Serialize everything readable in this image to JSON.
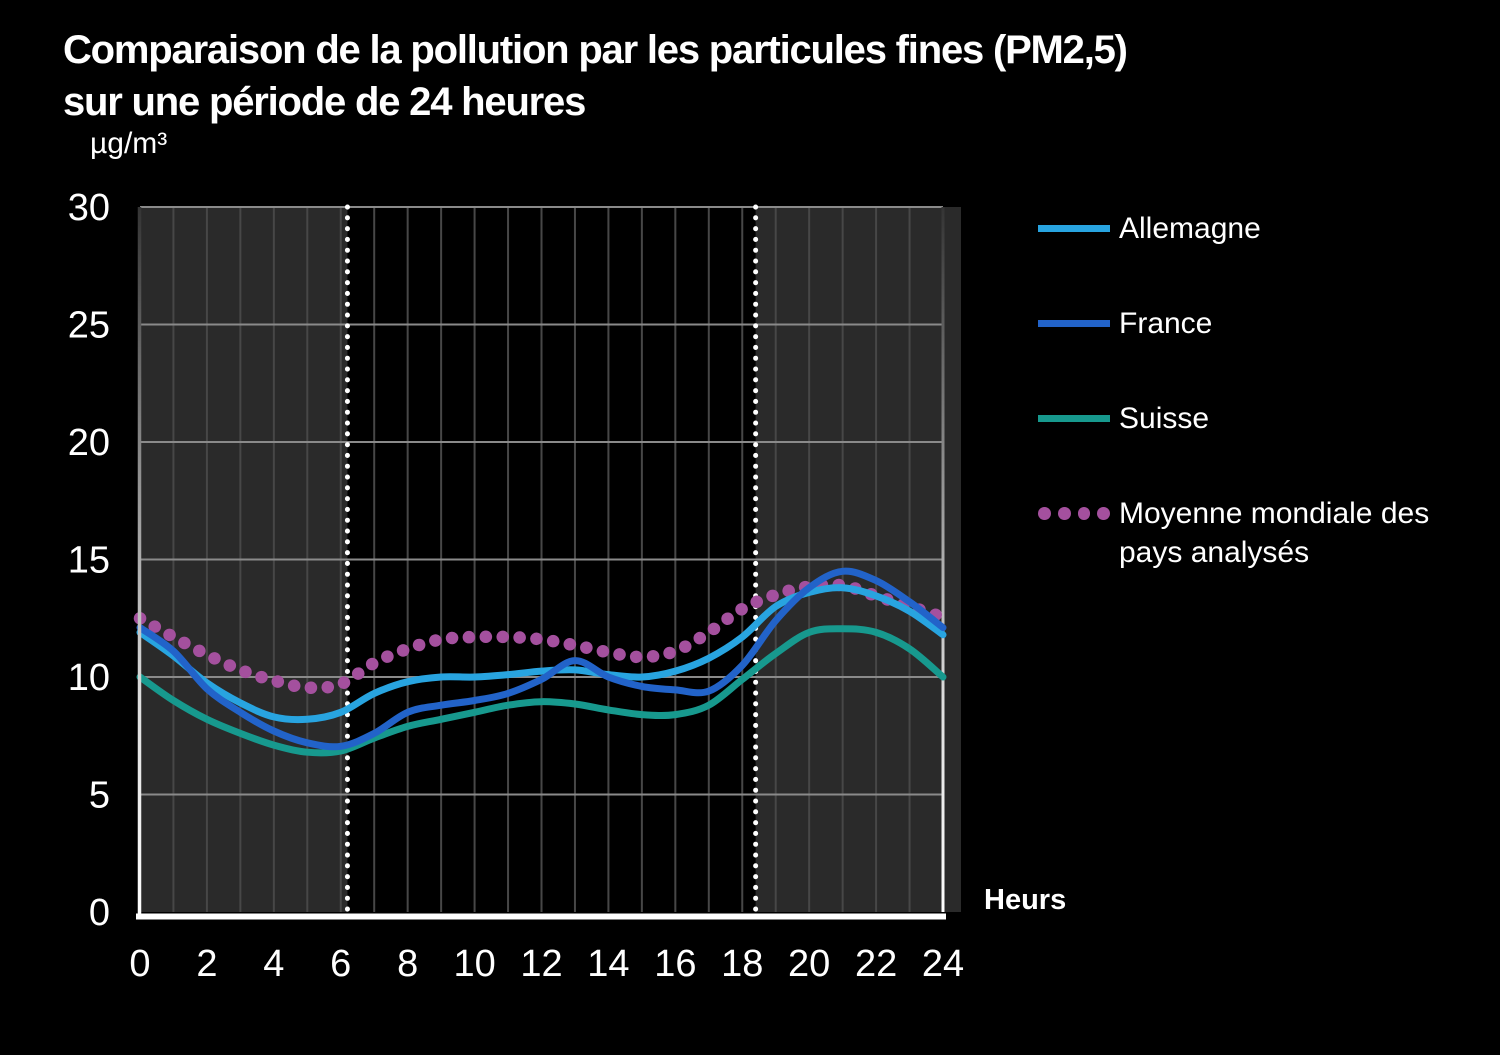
{
  "title": {
    "line1": "Comparaison de la pollution par les particules fines (PM2,5)",
    "line2": "sur une période de 24 heures"
  },
  "y_axis": {
    "unit_label": "µg/m³",
    "ticks": [
      "0",
      "5",
      "10",
      "15",
      "20",
      "25",
      "30"
    ]
  },
  "x_axis": {
    "label": "Heurs",
    "ticks": [
      "0",
      "2",
      "4",
      "6",
      "8",
      "10",
      "12",
      "14",
      "16",
      "18",
      "20",
      "22",
      "24"
    ]
  },
  "legend": {
    "items": [
      {
        "label": "Allemagne",
        "color": "#28a4e0",
        "style": "line"
      },
      {
        "label": "France",
        "color": "#2263c9",
        "style": "line"
      },
      {
        "label": "Suisse",
        "color": "#17998e",
        "style": "line"
      },
      {
        "label": "Moyenne mondiale des",
        "label2": "pays analysés",
        "color": "#a4509e",
        "style": "dots"
      }
    ]
  },
  "chart_data": {
    "type": "line",
    "title": "Comparaison de la pollution par les particules fines (PM2,5) sur une période de 24 heures",
    "xlabel": "Heurs",
    "ylabel": "µg/m³",
    "xlim": [
      0,
      24
    ],
    "ylim": [
      0,
      30
    ],
    "x_tick_step": 2,
    "y_tick_step": 5,
    "grid": "on",
    "legend_position": "right",
    "x": [
      0,
      1,
      2,
      3,
      4,
      5,
      6,
      7,
      8,
      9,
      10,
      11,
      12,
      13,
      14,
      15,
      16,
      17,
      18,
      19,
      20,
      21,
      22,
      23,
      24
    ],
    "series": [
      {
        "name": "Allemagne",
        "color": "#28a4e0",
        "line_style": "solid",
        "values": [
          11.9,
          10.9,
          9.75,
          8.9,
          8.3,
          8.2,
          8.5,
          9.3,
          9.8,
          10,
          10,
          10.1,
          10.25,
          10.3,
          10.1,
          10,
          10.25,
          10.8,
          11.7,
          13,
          13.6,
          13.8,
          13.45,
          12.8,
          11.8
        ]
      },
      {
        "name": "France",
        "color": "#2263c9",
        "line_style": "solid",
        "values": [
          12.1,
          11.1,
          9.5,
          8.5,
          7.7,
          7.2,
          7.05,
          7.6,
          8.5,
          8.8,
          9,
          9.3,
          9.9,
          10.7,
          10,
          9.6,
          9.45,
          9.4,
          10.5,
          12.4,
          13.8,
          14.5,
          14.1,
          13.2,
          12.1
        ]
      },
      {
        "name": "Suisse",
        "color": "#17998e",
        "line_style": "solid",
        "values": [
          10,
          9,
          8.2,
          7.6,
          7.1,
          6.8,
          6.85,
          7.4,
          7.9,
          8.2,
          8.5,
          8.8,
          8.95,
          8.85,
          8.6,
          8.4,
          8.4,
          8.8,
          9.9,
          11,
          11.9,
          12.05,
          11.9,
          11.2,
          10
        ]
      },
      {
        "name": "Moyenne mondiale des pays analysés",
        "color": "#a4509e",
        "line_style": "dotted",
        "values": [
          12.5,
          11.7,
          10.95,
          10.3,
          9.85,
          9.55,
          9.7,
          10.6,
          11.2,
          11.6,
          11.7,
          11.7,
          11.6,
          11.35,
          11.05,
          10.85,
          11.1,
          11.9,
          12.9,
          13.5,
          13.85,
          13.9,
          13.45,
          13,
          12.55
        ]
      }
    ],
    "night_bands": [
      [
        0,
        6.2
      ],
      [
        18.4,
        24
      ]
    ],
    "night_marker_hours": [
      6.2,
      18.4
    ],
    "colors": {
      "background": "#000000",
      "night_band": "#2a2a2a",
      "v_gridline": "#474747",
      "h_gridline": "#8a8a8a",
      "axis": "#ffffff",
      "night_marker": "#ffffff"
    }
  }
}
